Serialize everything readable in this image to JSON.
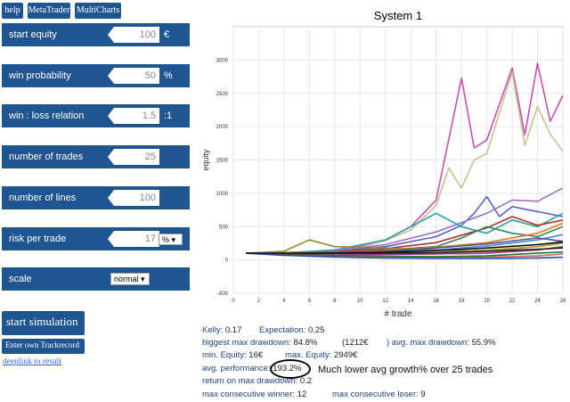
{
  "toolbar": {
    "help": "help",
    "metatrader": "MetaTrader",
    "multicharts": "MultiCharts"
  },
  "params": [
    {
      "label": "start equity",
      "value": "100",
      "unit": "€"
    },
    {
      "label": "win probability",
      "value": "50",
      "unit": "%"
    },
    {
      "label": "win : loss relation",
      "value": "1.5",
      "unit": ":1"
    },
    {
      "label": "number of trades",
      "value": "25",
      "unit": ""
    },
    {
      "label": "number of lines",
      "value": "100",
      "unit": ""
    },
    {
      "label": "risk per trade",
      "value": "17",
      "unit_select": "%"
    },
    {
      "label": "scale",
      "select": "normal"
    }
  ],
  "actions": {
    "start": "start simulation",
    "track": "Enter own Trackrecord",
    "deeplink": "deeplink to result"
  },
  "results": {
    "kelly_label": "Kelly:",
    "kelly": "0.17",
    "exp_label": "Expectation:",
    "exp": "0.25",
    "bmd_label": "biggest max drawdown:",
    "bmd": "84.8%",
    "bmd_abs": "(1212€",
    "amd_label": ") avg. max drawdown:",
    "amd": "55.9%",
    "min_label": "min. Equity:",
    "min": "16€",
    "max_label": "max. Equity:",
    "max": "2949€",
    "avgp_label": "avg. performance:",
    "avgp": "193.2%",
    "annotation": "Much lower avg growth% over 25 trades",
    "ret_label": "return on max drawdown:",
    "ret": "0.2",
    "mcw_label": "max consecutive winner:",
    "mcw": "12",
    "mcl_label": "max consecutive loser:",
    "mcl": "9"
  },
  "chart_data": {
    "type": "line",
    "title": "System 1",
    "xlabel": "# trade",
    "ylabel": "equity",
    "xlim": [
      0,
      26
    ],
    "ylim": [
      -500,
      3500
    ],
    "xticks": [
      0,
      2,
      4,
      6,
      8,
      10,
      12,
      14,
      16,
      18,
      20,
      22,
      24,
      26
    ],
    "yticks": [
      -500,
      0,
      500,
      1000,
      1500,
      2000,
      2500,
      3000
    ],
    "grid": true,
    "series": [
      {
        "color": "#c94eb4",
        "x": [
          1,
          2,
          4,
          6,
          8,
          10,
          12,
          14,
          16,
          18,
          19,
          20,
          22,
          23,
          24,
          25,
          26
        ],
        "y": [
          100,
          100,
          110,
          125,
          150,
          200,
          300,
          500,
          900,
          2730,
          1680,
          1800,
          2880,
          1880,
          2950,
          2080,
          2470
        ]
      },
      {
        "color": "#c9c18c",
        "x": [
          1,
          2,
          4,
          6,
          8,
          10,
          12,
          14,
          16,
          17,
          18,
          19,
          20,
          22,
          23,
          24,
          25,
          26
        ],
        "y": [
          100,
          100,
          108,
          120,
          145,
          190,
          290,
          450,
          820,
          1380,
          1080,
          1500,
          1600,
          2820,
          1720,
          2300,
          1890,
          1630
        ]
      },
      {
        "color": "#5560c9",
        "x": [
          1,
          4,
          8,
          12,
          16,
          18,
          19,
          20,
          21,
          22,
          26
        ],
        "y": [
          100,
          105,
          130,
          200,
          350,
          520,
          700,
          950,
          650,
          800,
          650
        ]
      },
      {
        "color": "#9b6fd1",
        "x": [
          1,
          4,
          8,
          12,
          16,
          20,
          22,
          24,
          26
        ],
        "y": [
          100,
          110,
          140,
          230,
          420,
          700,
          900,
          880,
          1080
        ]
      },
      {
        "color": "#2aa0a0",
        "x": [
          1,
          4,
          8,
          12,
          14,
          16,
          18,
          20,
          22,
          24,
          26
        ],
        "y": [
          100,
          105,
          150,
          300,
          500,
          700,
          500,
          400,
          600,
          500,
          700
        ]
      },
      {
        "color": "#b03030",
        "x": [
          1,
          4,
          8,
          12,
          16,
          20,
          22,
          24,
          26
        ],
        "y": [
          100,
          100,
          120,
          170,
          260,
          480,
          650,
          520,
          600
        ]
      },
      {
        "color": "#2e8b57",
        "x": [
          1,
          4,
          8,
          12,
          16,
          18,
          20,
          22,
          24,
          26
        ],
        "y": [
          100,
          100,
          110,
          150,
          200,
          330,
          500,
          400,
          350,
          500
        ]
      },
      {
        "color": "#e07b20",
        "x": [
          1,
          4,
          8,
          12,
          16,
          20,
          24,
          26
        ],
        "y": [
          100,
          100,
          115,
          140,
          190,
          260,
          400,
          550
        ]
      },
      {
        "color": "#3e8ed0",
        "x": [
          1,
          4,
          8,
          12,
          16,
          20,
          24,
          26
        ],
        "y": [
          100,
          90,
          100,
          120,
          150,
          210,
          300,
          380
        ]
      },
      {
        "color": "#8e8e30",
        "x": [
          1,
          4,
          6,
          8,
          12,
          16,
          20,
          24,
          26
        ],
        "y": [
          100,
          130,
          300,
          200,
          180,
          150,
          130,
          200,
          250
        ]
      },
      {
        "color": "#5a4a9b",
        "x": [
          1,
          4,
          8,
          12,
          16,
          20,
          24,
          26
        ],
        "y": [
          100,
          95,
          110,
          130,
          180,
          240,
          330,
          280
        ]
      },
      {
        "color": "#c0a030",
        "x": [
          1,
          4,
          8,
          12,
          16,
          20,
          24,
          26
        ],
        "y": [
          100,
          90,
          90,
          100,
          110,
          150,
          200,
          250
        ]
      },
      {
        "color": "#9a3a9a",
        "x": [
          1,
          4,
          8,
          12,
          16,
          20,
          24,
          26
        ],
        "y": [
          100,
          85,
          70,
          80,
          90,
          100,
          150,
          200
        ]
      },
      {
        "color": "#1a7a2a",
        "x": [
          1,
          4,
          8,
          12,
          16,
          20,
          24,
          26
        ],
        "y": [
          100,
          80,
          60,
          55,
          50,
          60,
          100,
          120
        ]
      },
      {
        "color": "#d36060",
        "x": [
          1,
          4,
          8,
          12,
          16,
          20,
          24,
          26
        ],
        "y": [
          100,
          75,
          50,
          40,
          30,
          40,
          60,
          90
        ]
      },
      {
        "color": "#2050a0",
        "x": [
          1,
          4,
          8,
          12,
          16,
          20,
          24,
          26
        ],
        "y": [
          100,
          70,
          45,
          30,
          25,
          22,
          30,
          40
        ]
      },
      {
        "color": "#111111",
        "x": [
          1,
          4,
          8,
          12,
          16,
          20,
          24,
          26
        ],
        "y": [
          100,
          100,
          105,
          115,
          140,
          180,
          230,
          270
        ]
      },
      {
        "color": "#222222",
        "x": [
          1,
          4,
          8,
          12,
          16,
          20,
          24,
          26
        ],
        "y": [
          100,
          95,
          95,
          100,
          110,
          130,
          160,
          180
        ]
      }
    ]
  }
}
